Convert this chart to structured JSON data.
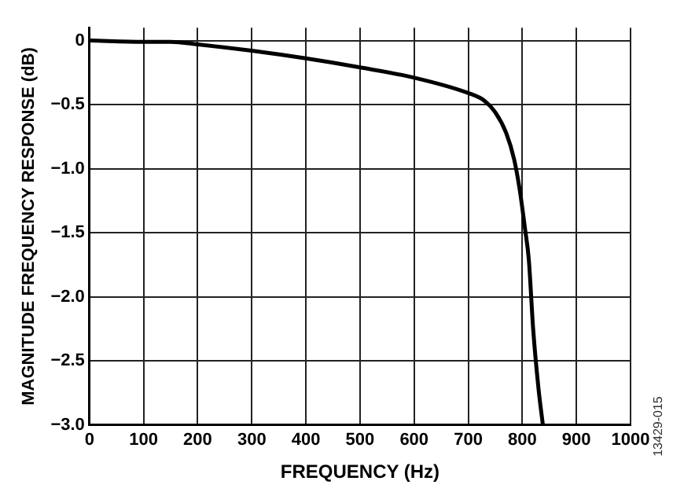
{
  "chart_data": {
    "type": "line",
    "xlabel": "FREQUENCY (Hz)",
    "ylabel": "MAGNITUDE FREQUENCY RESPONSE (dB)",
    "x": [
      0,
      100,
      150,
      200,
      300,
      400,
      500,
      600,
      700,
      730,
      750,
      770,
      785,
      795,
      805,
      812,
      820,
      830,
      838
    ],
    "series": [
      {
        "color": "#000000",
        "values": [
          0,
          -0.01,
          -0.01,
          -0.03,
          -0.08,
          -0.14,
          -0.21,
          -0.29,
          -0.41,
          -0.47,
          -0.56,
          -0.72,
          -0.93,
          -1.16,
          -1.47,
          -1.71,
          -2.25,
          -2.72,
          -3.0
        ]
      }
    ],
    "xlim": [
      0,
      1000
    ],
    "xticks": [
      0,
      100,
      200,
      300,
      400,
      500,
      600,
      700,
      800,
      900,
      1000
    ],
    "ylim": [
      -3.0,
      0.1
    ],
    "yticks": [
      {
        "value": 0,
        "label": "0"
      },
      {
        "value": -0.5,
        "label": "−0.5"
      },
      {
        "value": -1,
        "label": "−1.0"
      },
      {
        "value": -1.5,
        "label": "−1.5"
      },
      {
        "value": -2,
        "label": "−2.0"
      },
      {
        "value": -2.5,
        "label": "−2.5"
      },
      {
        "value": -3,
        "label": "−3.0"
      }
    ],
    "grid": true,
    "legend": false,
    "marker": "none",
    "line_style": "solid",
    "annotations": [
      "13429-015"
    ]
  }
}
